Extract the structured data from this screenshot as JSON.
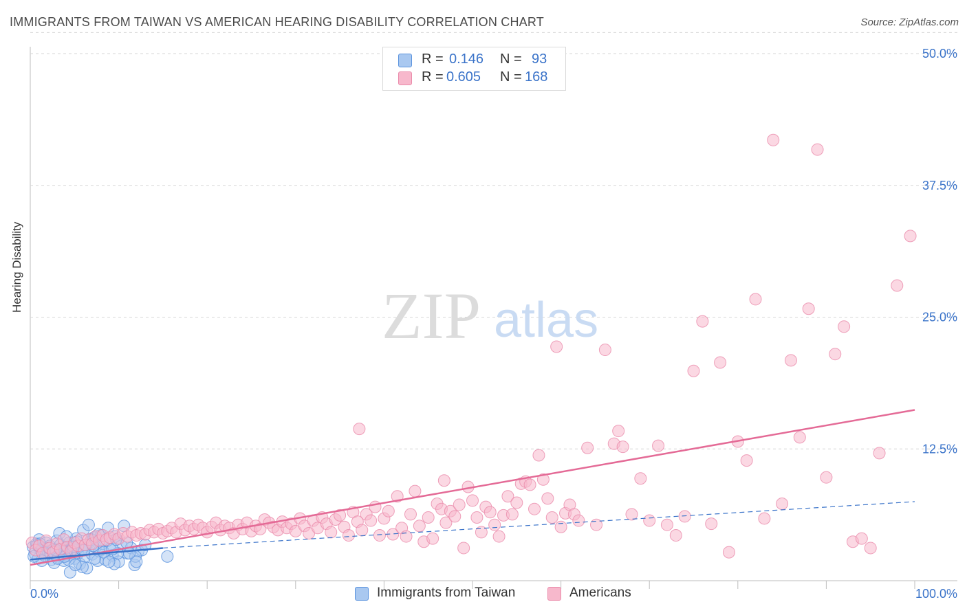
{
  "title": "IMMIGRANTS FROM TAIWAN VS AMERICAN HEARING DISABILITY CORRELATION CHART",
  "source": "Source: ZipAtlas.com",
  "watermark": {
    "zip": "ZIP",
    "atlas": "atlas"
  },
  "legend": {
    "rows": [
      {
        "r_label": "R =",
        "r_value": "0.146",
        "n_label": "N =",
        "n_value": "93"
      },
      {
        "r_label": "R =",
        "r_value": "0.605",
        "n_label": "N =",
        "n_value": "168"
      }
    ]
  },
  "colors": {
    "taiwan_fill": "#a9c8f0",
    "taiwan_stroke": "#5b93de",
    "taiwan_line": "#3a73c9",
    "americans_fill": "#f7b8cc",
    "americans_stroke": "#ea8aaa",
    "americans_line": "#e46a96",
    "tick_label": "#3a73c9",
    "grid": "#d6d6d6"
  },
  "chart_data": {
    "type": "scatter",
    "title": "IMMIGRANTS FROM TAIWAN VS AMERICAN HEARING DISABILITY CORRELATION CHART",
    "xlabel": "",
    "ylabel": "Hearing Disability",
    "xlim": [
      0,
      100
    ],
    "ylim": [
      0,
      50
    ],
    "x_tick_labels": [
      "0.0%",
      "100.0%"
    ],
    "y_ticks": [
      12.5,
      25.0,
      37.5,
      50.0
    ],
    "y_tick_labels": [
      "12.5%",
      "25.0%",
      "37.5%",
      "50.0%"
    ],
    "grid": true,
    "legend_position": "top-center",
    "series": [
      {
        "name": "Immigrants from Taiwan",
        "r": 0.146,
        "n": 93,
        "trend_solid": [
          [
            0,
            2.0
          ],
          [
            15,
            3.1
          ]
        ],
        "trend_dashed": [
          [
            15,
            3.1
          ],
          [
            100,
            7.5
          ]
        ],
        "points": [
          [
            0.3,
            3.2
          ],
          [
            0.5,
            2.6
          ],
          [
            0.7,
            3.5
          ],
          [
            0.9,
            2.1
          ],
          [
            1.0,
            3.9
          ],
          [
            1.2,
            2.9
          ],
          [
            1.4,
            3.1
          ],
          [
            1.6,
            2.4
          ],
          [
            1.8,
            3.6
          ],
          [
            2.0,
            2.8
          ],
          [
            2.2,
            3.3
          ],
          [
            2.4,
            2.0
          ],
          [
            2.6,
            3.0
          ],
          [
            2.8,
            2.5
          ],
          [
            3.0,
            3.8
          ],
          [
            3.2,
            2.2
          ],
          [
            3.4,
            3.4
          ],
          [
            3.6,
            2.7
          ],
          [
            3.8,
            1.9
          ],
          [
            4.0,
            3.1
          ],
          [
            4.2,
            2.4
          ],
          [
            4.4,
            3.6
          ],
          [
            4.6,
            2.9
          ],
          [
            4.8,
            3.3
          ],
          [
            5.0,
            2.1
          ],
          [
            5.2,
            4.0
          ],
          [
            5.4,
            2.6
          ],
          [
            5.6,
            1.6
          ],
          [
            5.8,
            3.0
          ],
          [
            6.0,
            4.8
          ],
          [
            6.2,
            2.3
          ],
          [
            6.4,
            1.2
          ],
          [
            6.6,
            5.3
          ],
          [
            6.8,
            3.7
          ],
          [
            7.0,
            2.5
          ],
          [
            7.2,
            4.1
          ],
          [
            7.4,
            3.2
          ],
          [
            7.6,
            1.9
          ],
          [
            7.8,
            2.8
          ],
          [
            8.0,
            4.3
          ],
          [
            8.2,
            3.5
          ],
          [
            8.5,
            2.0
          ],
          [
            8.8,
            5.0
          ],
          [
            9.0,
            3.0
          ],
          [
            9.3,
            2.4
          ],
          [
            9.6,
            4.2
          ],
          [
            10.0,
            1.8
          ],
          [
            10.3,
            3.3
          ],
          [
            10.6,
            5.2
          ],
          [
            11.0,
            2.6
          ],
          [
            11.4,
            3.1
          ],
          [
            11.8,
            1.5
          ],
          [
            12.2,
            2.8
          ],
          [
            12.6,
            2.9
          ],
          [
            13.0,
            3.4
          ],
          [
            9.5,
            1.6
          ],
          [
            4.5,
            0.8
          ],
          [
            5.9,
            1.3
          ],
          [
            3.5,
            3.0
          ],
          [
            2.7,
            1.7
          ],
          [
            1.5,
            2.7
          ],
          [
            0.8,
            3.4
          ],
          [
            6.9,
            3.9
          ],
          [
            7.7,
            4.4
          ],
          [
            8.7,
            3.8
          ],
          [
            9.9,
            2.6
          ],
          [
            10.9,
            3.6
          ],
          [
            11.9,
            2.3
          ],
          [
            1.3,
            1.9
          ],
          [
            2.3,
            2.6
          ],
          [
            3.3,
            4.5
          ],
          [
            4.3,
            2.0
          ],
          [
            5.3,
            3.7
          ],
          [
            6.3,
            3.4
          ],
          [
            7.3,
            2.1
          ],
          [
            8.3,
            2.7
          ],
          [
            9.3,
            3.0
          ],
          [
            15.5,
            2.3
          ],
          [
            0.4,
            2.3
          ],
          [
            1.1,
            3.5
          ],
          [
            2.1,
            3.1
          ],
          [
            3.1,
            2.1
          ],
          [
            4.1,
            4.2
          ],
          [
            5.1,
            1.5
          ],
          [
            6.1,
            2.9
          ],
          [
            7.1,
            3.3
          ],
          [
            12.0,
            1.8
          ],
          [
            11.2,
            2.6
          ],
          [
            9.7,
            3.9
          ],
          [
            8.9,
            1.8
          ],
          [
            4.9,
            3.2
          ],
          [
            3.9,
            2.3
          ],
          [
            2.9,
            2.9
          ]
        ]
      },
      {
        "name": "Americans",
        "r": 0.605,
        "n": 168,
        "trend_solid": [
          [
            0,
            1.5
          ],
          [
            100,
            16.2
          ]
        ],
        "points": [
          [
            0.2,
            3.6
          ],
          [
            0.6,
            2.9
          ],
          [
            1.0,
            3.3
          ],
          [
            1.4,
            2.6
          ],
          [
            1.8,
            3.8
          ],
          [
            2.2,
            3.1
          ],
          [
            2.6,
            2.7
          ],
          [
            3.0,
            3.5
          ],
          [
            3.4,
            3.0
          ],
          [
            3.8,
            3.9
          ],
          [
            4.2,
            3.2
          ],
          [
            4.6,
            2.8
          ],
          [
            5.0,
            3.6
          ],
          [
            5.4,
            3.3
          ],
          [
            5.8,
            4.0
          ],
          [
            6.2,
            3.4
          ],
          [
            6.6,
            3.9
          ],
          [
            7.0,
            3.5
          ],
          [
            7.4,
            4.2
          ],
          [
            7.8,
            3.8
          ],
          [
            8.2,
            4.3
          ],
          [
            8.6,
            3.9
          ],
          [
            9.0,
            4.1
          ],
          [
            9.5,
            4.4
          ],
          [
            10.0,
            4.0
          ],
          [
            10.5,
            4.5
          ],
          [
            11.0,
            4.2
          ],
          [
            11.5,
            4.6
          ],
          [
            12.0,
            4.3
          ],
          [
            12.5,
            4.5
          ],
          [
            13.0,
            4.4
          ],
          [
            13.5,
            4.8
          ],
          [
            14.0,
            4.6
          ],
          [
            14.5,
            4.9
          ],
          [
            15.0,
            4.5
          ],
          [
            15.5,
            4.7
          ],
          [
            16.0,
            5.0
          ],
          [
            16.5,
            4.6
          ],
          [
            17.0,
            5.4
          ],
          [
            17.5,
            4.8
          ],
          [
            18.0,
            5.2
          ],
          [
            18.5,
            4.9
          ],
          [
            19.0,
            5.3
          ],
          [
            19.5,
            5.0
          ],
          [
            20.0,
            4.6
          ],
          [
            20.5,
            5.1
          ],
          [
            21.0,
            5.5
          ],
          [
            21.5,
            4.8
          ],
          [
            22.0,
            5.2
          ],
          [
            22.5,
            5.0
          ],
          [
            23.0,
            4.5
          ],
          [
            23.5,
            5.3
          ],
          [
            24.0,
            4.9
          ],
          [
            24.5,
            5.5
          ],
          [
            25.0,
            4.7
          ],
          [
            25.5,
            5.2
          ],
          [
            26.0,
            4.9
          ],
          [
            26.5,
            5.8
          ],
          [
            27.0,
            5.5
          ],
          [
            27.5,
            5.1
          ],
          [
            28.0,
            4.8
          ],
          [
            28.5,
            5.6
          ],
          [
            29.0,
            5.0
          ],
          [
            29.5,
            5.4
          ],
          [
            30.0,
            4.7
          ],
          [
            30.5,
            5.9
          ],
          [
            31.0,
            5.2
          ],
          [
            31.5,
            4.5
          ],
          [
            32.0,
            5.7
          ],
          [
            32.5,
            5.0
          ],
          [
            33.0,
            6.0
          ],
          [
            33.5,
            5.4
          ],
          [
            34.0,
            4.6
          ],
          [
            34.5,
            5.8
          ],
          [
            35.0,
            6.2
          ],
          [
            35.5,
            5.1
          ],
          [
            36.0,
            4.3
          ],
          [
            36.5,
            6.5
          ],
          [
            37.0,
            5.6
          ],
          [
            37.5,
            4.8
          ],
          [
            38.0,
            6.3
          ],
          [
            38.5,
            5.7
          ],
          [
            39.0,
            7.0
          ],
          [
            39.5,
            4.3
          ],
          [
            40.0,
            5.9
          ],
          [
            40.5,
            6.6
          ],
          [
            41.0,
            4.4
          ],
          [
            41.5,
            8.0
          ],
          [
            42.0,
            5.0
          ],
          [
            42.5,
            4.2
          ],
          [
            43.0,
            6.3
          ],
          [
            43.5,
            8.5
          ],
          [
            44.0,
            5.2
          ],
          [
            44.5,
            3.7
          ],
          [
            45.0,
            6.0
          ],
          [
            45.5,
            4.0
          ],
          [
            46.0,
            7.3
          ],
          [
            46.5,
            6.8
          ],
          [
            47.0,
            5.5
          ],
          [
            47.5,
            6.6
          ],
          [
            48.0,
            6.1
          ],
          [
            48.5,
            7.2
          ],
          [
            49.0,
            3.1
          ],
          [
            49.5,
            8.9
          ],
          [
            50.0,
            7.6
          ],
          [
            50.5,
            6.0
          ],
          [
            51.0,
            4.6
          ],
          [
            51.5,
            7.0
          ],
          [
            52.0,
            6.5
          ],
          [
            52.5,
            5.3
          ],
          [
            53.0,
            4.2
          ],
          [
            53.5,
            6.2
          ],
          [
            54.0,
            8.0
          ],
          [
            54.5,
            6.3
          ],
          [
            55.0,
            7.4
          ],
          [
            55.5,
            9.2
          ],
          [
            56.0,
            9.4
          ],
          [
            56.5,
            9.1
          ],
          [
            57.0,
            6.8
          ],
          [
            57.5,
            11.9
          ],
          [
            58.0,
            9.6
          ],
          [
            58.5,
            7.8
          ],
          [
            59.0,
            6.0
          ],
          [
            59.5,
            22.2
          ],
          [
            60.0,
            5.1
          ],
          [
            60.5,
            6.4
          ],
          [
            61.0,
            7.2
          ],
          [
            61.5,
            6.3
          ],
          [
            62.0,
            5.7
          ],
          [
            63.0,
            12.6
          ],
          [
            64.0,
            5.3
          ],
          [
            65.0,
            21.9
          ],
          [
            66.0,
            13.0
          ],
          [
            66.5,
            14.2
          ],
          [
            67.0,
            12.7
          ],
          [
            68.0,
            6.3
          ],
          [
            69.0,
            9.7
          ],
          [
            70.0,
            5.7
          ],
          [
            71.0,
            12.8
          ],
          [
            72.0,
            5.3
          ],
          [
            73.0,
            4.3
          ],
          [
            74.0,
            6.1
          ],
          [
            75.0,
            19.9
          ],
          [
            76.0,
            24.6
          ],
          [
            77.0,
            5.4
          ],
          [
            78.0,
            20.7
          ],
          [
            79.0,
            2.7
          ],
          [
            80.0,
            13.2
          ],
          [
            81.0,
            11.4
          ],
          [
            82.0,
            26.7
          ],
          [
            83.0,
            5.9
          ],
          [
            84.0,
            41.8
          ],
          [
            85.0,
            7.3
          ],
          [
            86.0,
            20.9
          ],
          [
            87.0,
            13.6
          ],
          [
            88.0,
            25.8
          ],
          [
            89.0,
            40.9
          ],
          [
            90.0,
            9.8
          ],
          [
            91.0,
            21.5
          ],
          [
            92.0,
            24.1
          ],
          [
            93.0,
            3.7
          ],
          [
            94.0,
            4.0
          ],
          [
            95.0,
            3.1
          ],
          [
            96.0,
            12.1
          ],
          [
            98.0,
            28.0
          ],
          [
            99.5,
            32.7
          ],
          [
            37.2,
            14.4
          ],
          [
            46.8,
            9.5
          ]
        ]
      }
    ]
  },
  "bottom_legend": [
    {
      "label": "Immigrants from Taiwan"
    },
    {
      "label": "Americans"
    }
  ]
}
